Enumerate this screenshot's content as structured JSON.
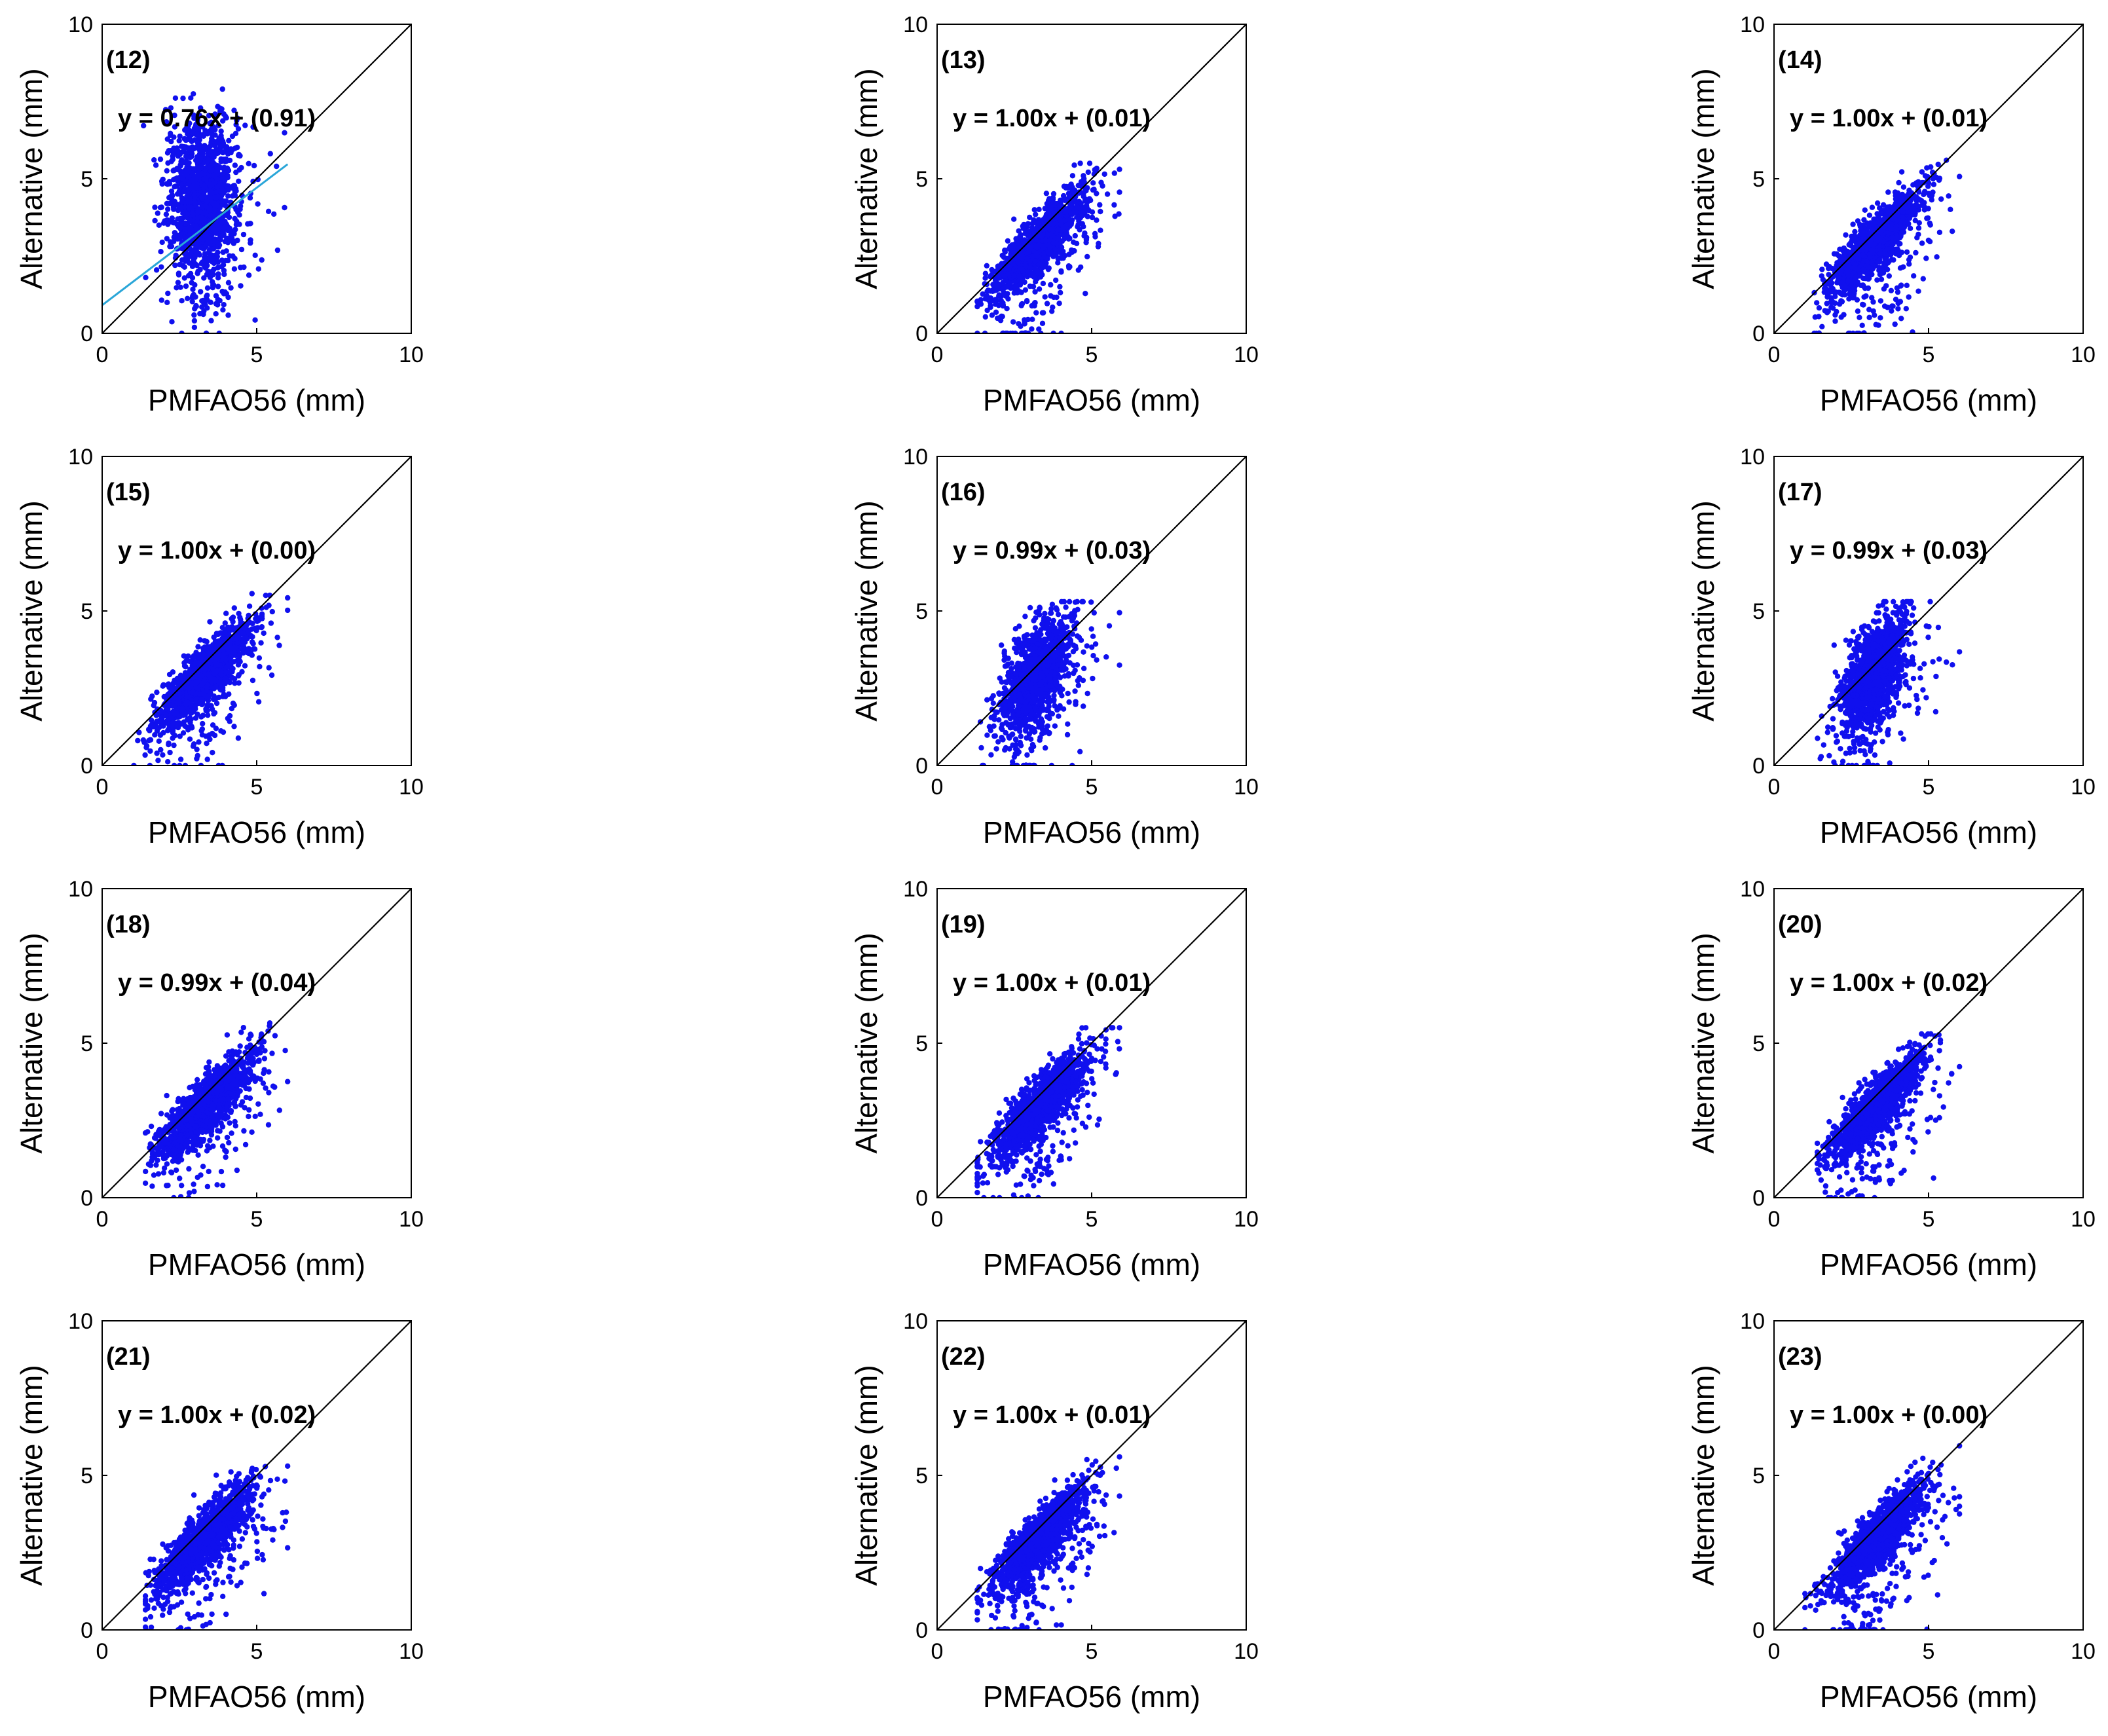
{
  "figure": {
    "panel_count": 12,
    "point_color": "#1010ee",
    "fit_line_color": "#2aa6d8",
    "identity_line_color": "#000000",
    "axes_color": "#000000"
  },
  "chart_data": [
    {
      "type": "scatter",
      "panel_label": "(12)",
      "equation": "y = 0.76x + (0.91)",
      "xlabel": "PMFAO56 (mm)",
      "ylabel": "Alternative (mm)",
      "xlim": [
        0,
        10
      ],
      "ylim": [
        0,
        10
      ],
      "xticks": [
        "0",
        "5",
        "10"
      ],
      "yticks": [
        "0",
        "5",
        "10"
      ],
      "slope": 0.76,
      "intercept": 0.91,
      "fit_line_x": [
        0,
        6
      ],
      "show_fit_line": true,
      "points": {
        "x_range": [
          1.1,
          5.9
        ],
        "y_range": [
          0,
          7.9
        ],
        "n": 1400,
        "pattern": "vertical-band"
      }
    },
    {
      "type": "scatter",
      "panel_label": "(13)",
      "equation": "y = 1.00x + (0.01)",
      "xlabel": "PMFAO56 (mm)",
      "ylabel": "Alternative (mm)",
      "xlim": [
        0,
        10
      ],
      "ylim": [
        0,
        10
      ],
      "xticks": [
        "0",
        "5",
        "10"
      ],
      "yticks": [
        "0",
        "5",
        "10"
      ],
      "slope": 1.0,
      "intercept": 0.01,
      "show_fit_line": false,
      "points": {
        "x_range": [
          1.3,
          5.9
        ],
        "y_range": [
          0,
          5.5
        ],
        "n": 1400,
        "pattern": "diagonal"
      }
    },
    {
      "type": "scatter",
      "panel_label": "(14)",
      "equation": "y = 1.00x + (0.01)",
      "xlabel": "PMFAO56 (mm)",
      "ylabel": "Alternative (mm)",
      "xlim": [
        0,
        10
      ],
      "ylim": [
        0,
        10
      ],
      "xticks": [
        "0",
        "5",
        "10"
      ],
      "yticks": [
        "0",
        "5",
        "10"
      ],
      "slope": 1.0,
      "intercept": 0.01,
      "show_fit_line": false,
      "points": {
        "x_range": [
          1.3,
          6.0
        ],
        "y_range": [
          0,
          5.6
        ],
        "n": 1400,
        "pattern": "diagonal"
      }
    },
    {
      "type": "scatter",
      "panel_label": "(15)",
      "equation": "y = 1.00x + (0.00)",
      "xlabel": "PMFAO56 (mm)",
      "ylabel": "Alternative (mm)",
      "xlim": [
        0,
        10
      ],
      "ylim": [
        0,
        10
      ],
      "xticks": [
        "0",
        "5",
        "10"
      ],
      "yticks": [
        "0",
        "5",
        "10"
      ],
      "slope": 1.0,
      "intercept": 0.0,
      "show_fit_line": false,
      "points": {
        "x_range": [
          1.0,
          6.0
        ],
        "y_range": [
          0,
          6.1
        ],
        "n": 1400,
        "pattern": "diagonal"
      }
    },
    {
      "type": "scatter",
      "panel_label": "(16)",
      "equation": "y = 0.99x + (0.03)",
      "xlabel": "PMFAO56 (mm)",
      "ylabel": "Alternative (mm)",
      "xlim": [
        0,
        10
      ],
      "ylim": [
        0,
        10
      ],
      "xticks": [
        "0",
        "5",
        "10"
      ],
      "yticks": [
        "0",
        "5",
        "10"
      ],
      "slope": 0.99,
      "intercept": 0.03,
      "show_fit_line": false,
      "points": {
        "x_range": [
          1.4,
          5.9
        ],
        "y_range": [
          0,
          5.3
        ],
        "n": 1400,
        "pattern": "vertical-band"
      }
    },
    {
      "type": "scatter",
      "panel_label": "(17)",
      "equation": "y = 0.99x + (0.03)",
      "xlabel": "PMFAO56 (mm)",
      "ylabel": "Alternative (mm)",
      "xlim": [
        0,
        10
      ],
      "ylim": [
        0,
        10
      ],
      "xticks": [
        "0",
        "5",
        "10"
      ],
      "yticks": [
        "0",
        "5",
        "10"
      ],
      "slope": 0.99,
      "intercept": 0.03,
      "show_fit_line": false,
      "points": {
        "x_range": [
          1.4,
          6.0
        ],
        "y_range": [
          0,
          5.3
        ],
        "n": 1400,
        "pattern": "vertical-band"
      }
    },
    {
      "type": "scatter",
      "panel_label": "(18)",
      "equation": "y = 0.99x + (0.04)",
      "xlabel": "PMFAO56 (mm)",
      "ylabel": "Alternative (mm)",
      "xlim": [
        0,
        10
      ],
      "ylim": [
        0,
        10
      ],
      "xticks": [
        "0",
        "5",
        "10"
      ],
      "yticks": [
        "0",
        "5",
        "10"
      ],
      "slope": 0.99,
      "intercept": 0.04,
      "show_fit_line": false,
      "points": {
        "x_range": [
          1.4,
          6.0
        ],
        "y_range": [
          0,
          5.8
        ],
        "n": 1400,
        "pattern": "diagonal"
      }
    },
    {
      "type": "scatter",
      "panel_label": "(19)",
      "equation": "y = 1.00x + (0.01)",
      "xlabel": "PMFAO56 (mm)",
      "ylabel": "Alternative (mm)",
      "xlim": [
        0,
        10
      ],
      "ylim": [
        0,
        10
      ],
      "xticks": [
        "0",
        "5",
        "10"
      ],
      "yticks": [
        "0",
        "5",
        "10"
      ],
      "slope": 1.0,
      "intercept": 0.01,
      "show_fit_line": false,
      "points": {
        "x_range": [
          1.3,
          5.9
        ],
        "y_range": [
          0,
          5.5
        ],
        "n": 1400,
        "pattern": "diagonal"
      }
    },
    {
      "type": "scatter",
      "panel_label": "(20)",
      "equation": "y = 1.00x + (0.02)",
      "xlabel": "PMFAO56 (mm)",
      "ylabel": "Alternative (mm)",
      "xlim": [
        0,
        10
      ],
      "ylim": [
        0,
        10
      ],
      "xticks": [
        "0",
        "5",
        "10"
      ],
      "yticks": [
        "0",
        "5",
        "10"
      ],
      "slope": 1.0,
      "intercept": 0.02,
      "show_fit_line": false,
      "points": {
        "x_range": [
          1.4,
          6.0
        ],
        "y_range": [
          0,
          5.3
        ],
        "n": 1400,
        "pattern": "diagonal"
      }
    },
    {
      "type": "scatter",
      "panel_label": "(21)",
      "equation": "y = 1.00x + (0.02)",
      "xlabel": "PMFAO56 (mm)",
      "ylabel": "Alternative (mm)",
      "xlim": [
        0,
        10
      ],
      "ylim": [
        0,
        10
      ],
      "xticks": [
        "0",
        "5",
        "10"
      ],
      "yticks": [
        "0",
        "5",
        "10"
      ],
      "slope": 1.0,
      "intercept": 0.02,
      "show_fit_line": false,
      "points": {
        "x_range": [
          1.4,
          6.0
        ],
        "y_range": [
          0,
          5.3
        ],
        "n": 1400,
        "pattern": "diagonal"
      }
    },
    {
      "type": "scatter",
      "panel_label": "(22)",
      "equation": "y = 1.00x + (0.01)",
      "xlabel": "PMFAO56 (mm)",
      "ylabel": "Alternative (mm)",
      "xlim": [
        0,
        10
      ],
      "ylim": [
        0,
        10
      ],
      "xticks": [
        "0",
        "5",
        "10"
      ],
      "yticks": [
        "0",
        "5",
        "10"
      ],
      "slope": 1.0,
      "intercept": 0.01,
      "show_fit_line": false,
      "points": {
        "x_range": [
          1.3,
          5.9
        ],
        "y_range": [
          0,
          5.6
        ],
        "n": 1400,
        "pattern": "diagonal"
      }
    },
    {
      "type": "scatter",
      "panel_label": "(23)",
      "equation": "y = 1.00x + (0.00)",
      "xlabel": "PMFAO56 (mm)",
      "ylabel": "Alternative (mm)",
      "xlim": [
        0,
        10
      ],
      "ylim": [
        0,
        10
      ],
      "xticks": [
        "0",
        "5",
        "10"
      ],
      "yticks": [
        "0",
        "5",
        "10"
      ],
      "slope": 1.0,
      "intercept": 0.0,
      "show_fit_line": false,
      "points": {
        "x_range": [
          1.0,
          6.0
        ],
        "y_range": [
          0,
          6.1
        ],
        "n": 1400,
        "pattern": "diagonal"
      }
    }
  ]
}
